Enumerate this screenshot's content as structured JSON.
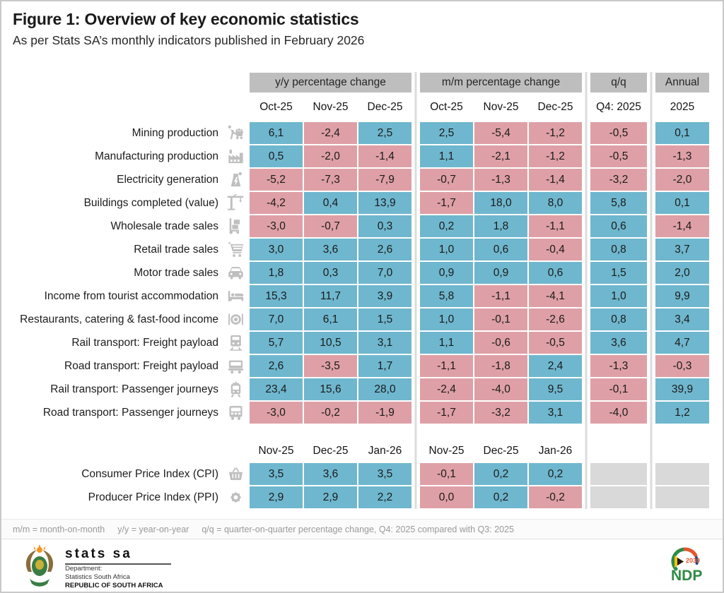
{
  "chart_data": {
    "type": "table",
    "title": "Figure 1: Overview of key economic statistics",
    "subtitle": "As per Stats SA’s monthly indicators published in February 2026",
    "groups": {
      "yy": "y/y percentage change",
      "mm": "m/m percentage change",
      "qq": "q/q",
      "annual": "Annual"
    },
    "section1": {
      "months": [
        "Oct-25",
        "Nov-25",
        "Dec-25"
      ],
      "qq_label": "Q4: 2025",
      "annual_label": "2025",
      "rows": [
        {
          "label": "Mining production",
          "icon": "mining-cart-icon",
          "yy": [
            6.1,
            -2.4,
            2.5
          ],
          "mm": [
            2.5,
            -5.4,
            -1.2
          ],
          "qq": -0.5,
          "annual": 0.1
        },
        {
          "label": "Manufacturing production",
          "icon": "factory-icon",
          "yy": [
            0.5,
            -2.0,
            -1.4
          ],
          "mm": [
            1.1,
            -2.1,
            -1.2
          ],
          "qq": -0.5,
          "annual": -1.3
        },
        {
          "label": "Electricity generation",
          "icon": "power-plant-icon",
          "yy": [
            -5.2,
            -7.3,
            -7.9
          ],
          "mm": [
            -0.7,
            -1.3,
            -1.4
          ],
          "qq": -3.2,
          "annual": -2.0
        },
        {
          "label": "Buildings completed (value)",
          "icon": "crane-icon",
          "yy": [
            -4.2,
            0.4,
            13.9
          ],
          "mm": [
            -1.7,
            18.0,
            8.0
          ],
          "qq": 5.8,
          "annual": 0.1
        },
        {
          "label": "Wholesale trade sales",
          "icon": "hand-truck-icon",
          "yy": [
            -3.0,
            -0.7,
            0.3
          ],
          "mm": [
            0.2,
            1.8,
            -1.1
          ],
          "qq": 0.6,
          "annual": -1.4
        },
        {
          "label": "Retail trade sales",
          "icon": "shopping-cart-icon",
          "yy": [
            3.0,
            3.6,
            2.6
          ],
          "mm": [
            1.0,
            0.6,
            -0.4
          ],
          "qq": 0.8,
          "annual": 3.7
        },
        {
          "label": "Motor trade sales",
          "icon": "car-icon",
          "yy": [
            1.8,
            0.3,
            7.0
          ],
          "mm": [
            0.9,
            0.9,
            0.6
          ],
          "qq": 1.5,
          "annual": 2.0
        },
        {
          "label": "Income from tourist accommodation",
          "icon": "bed-icon",
          "yy": [
            15.3,
            11.7,
            3.9
          ],
          "mm": [
            5.8,
            -1.1,
            -4.1
          ],
          "qq": 1.0,
          "annual": 9.9
        },
        {
          "label": "Restaurants, catering & fast-food income",
          "icon": "restaurant-plate-icon",
          "yy": [
            7.0,
            6.1,
            1.5
          ],
          "mm": [
            1.0,
            -0.1,
            -2.6
          ],
          "qq": 0.8,
          "annual": 3.4
        },
        {
          "label": "Rail transport: Freight payload",
          "icon": "freight-train-icon",
          "yy": [
            5.7,
            10.5,
            3.1
          ],
          "mm": [
            1.1,
            -0.6,
            -0.5
          ],
          "qq": 3.6,
          "annual": 4.7
        },
        {
          "label": "Road transport: Freight payload",
          "icon": "truck-icon",
          "yy": [
            2.6,
            -3.5,
            1.7
          ],
          "mm": [
            -1.1,
            -1.8,
            2.4
          ],
          "qq": -1.3,
          "annual": -0.3
        },
        {
          "label": "Rail transport: Passenger journeys",
          "icon": "tram-icon",
          "yy": [
            23.4,
            15.6,
            28.0
          ],
          "mm": [
            -2.4,
            -4.0,
            9.5
          ],
          "qq": -0.1,
          "annual": 39.9
        },
        {
          "label": "Road transport: Passenger journeys",
          "icon": "bus-icon",
          "yy": [
            -3.0,
            -0.2,
            -1.9
          ],
          "mm": [
            -1.7,
            -3.2,
            3.1
          ],
          "qq": -4.0,
          "annual": 1.2
        }
      ]
    },
    "section2": {
      "months": [
        "Nov-25",
        "Dec-25",
        "Jan-26"
      ],
      "rows": [
        {
          "label": "Consumer Price Index (CPI)",
          "icon": "shopping-basket-icon",
          "yy": [
            3.5,
            3.6,
            3.5
          ],
          "mm": [
            -0.1,
            0.2,
            0.2
          ],
          "qq": null,
          "annual": null
        },
        {
          "label": "Producer Price Index (PPI)",
          "icon": "gear-icon",
          "yy": [
            2.9,
            2.9,
            2.2
          ],
          "mm": [
            0.0,
            0.2,
            -0.2
          ],
          "qq": null,
          "annual": null
        }
      ]
    },
    "number_format": "comma-decimal, one decimal place",
    "color_rule": "value > 0 shown blue, value <= 0 shown pink, missing shown gray"
  },
  "footnote": [
    "m/m = month-on-month",
    "y/y = year-on-year",
    "q/q = quarter-on-quarter percentage change, Q4: 2025 compared with Q3: 2025"
  ],
  "colors": {
    "positive": "#6fb7ce",
    "negative": "#dea0a6",
    "empty_cell": "#d9d9d9",
    "header_gray": "#bebebe",
    "icon_gray": "#bfbfbf"
  },
  "footer": {
    "statssa": {
      "name": "stats sa",
      "dept": "Department:",
      "line2": "Statistics South Africa",
      "line3": "REPUBLIC OF SOUTH AFRICA"
    },
    "ndp": {
      "label": "NDP",
      "year": "2030"
    }
  }
}
